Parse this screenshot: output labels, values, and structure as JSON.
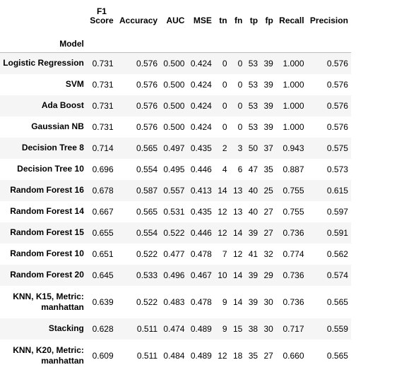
{
  "columns": {
    "index_name": "Model",
    "f1_line1": "F1",
    "f1_line2": "Score",
    "accuracy": "Accuracy",
    "auc": "AUC",
    "mse": "MSE",
    "tn": "tn",
    "fn": "fn",
    "tp": "tp",
    "fp": "fp",
    "recall": "Recall",
    "precision": "Precision"
  },
  "rows": [
    {
      "model": "Logistic Regression",
      "f1": "0.731",
      "accuracy": "0.576",
      "auc": "0.500",
      "mse": "0.424",
      "tn": "0",
      "fn": "0",
      "tp": "53",
      "fp": "39",
      "recall": "1.000",
      "precision": "0.576"
    },
    {
      "model": "SVM",
      "f1": "0.731",
      "accuracy": "0.576",
      "auc": "0.500",
      "mse": "0.424",
      "tn": "0",
      "fn": "0",
      "tp": "53",
      "fp": "39",
      "recall": "1.000",
      "precision": "0.576"
    },
    {
      "model": "Ada Boost",
      "f1": "0.731",
      "accuracy": "0.576",
      "auc": "0.500",
      "mse": "0.424",
      "tn": "0",
      "fn": "0",
      "tp": "53",
      "fp": "39",
      "recall": "1.000",
      "precision": "0.576"
    },
    {
      "model": "Gaussian NB",
      "f1": "0.731",
      "accuracy": "0.576",
      "auc": "0.500",
      "mse": "0.424",
      "tn": "0",
      "fn": "0",
      "tp": "53",
      "fp": "39",
      "recall": "1.000",
      "precision": "0.576"
    },
    {
      "model": "Decision Tree 8",
      "f1": "0.714",
      "accuracy": "0.565",
      "auc": "0.497",
      "mse": "0.435",
      "tn": "2",
      "fn": "3",
      "tp": "50",
      "fp": "37",
      "recall": "0.943",
      "precision": "0.575"
    },
    {
      "model": "Decision Tree 10",
      "f1": "0.696",
      "accuracy": "0.554",
      "auc": "0.495",
      "mse": "0.446",
      "tn": "4",
      "fn": "6",
      "tp": "47",
      "fp": "35",
      "recall": "0.887",
      "precision": "0.573"
    },
    {
      "model": "Random Forest 16",
      "f1": "0.678",
      "accuracy": "0.587",
      "auc": "0.557",
      "mse": "0.413",
      "tn": "14",
      "fn": "13",
      "tp": "40",
      "fp": "25",
      "recall": "0.755",
      "precision": "0.615"
    },
    {
      "model": "Random Forest 14",
      "f1": "0.667",
      "accuracy": "0.565",
      "auc": "0.531",
      "mse": "0.435",
      "tn": "12",
      "fn": "13",
      "tp": "40",
      "fp": "27",
      "recall": "0.755",
      "precision": "0.597"
    },
    {
      "model": "Random Forest 15",
      "f1": "0.655",
      "accuracy": "0.554",
      "auc": "0.522",
      "mse": "0.446",
      "tn": "12",
      "fn": "14",
      "tp": "39",
      "fp": "27",
      "recall": "0.736",
      "precision": "0.591"
    },
    {
      "model": "Random Forest 10",
      "f1": "0.651",
      "accuracy": "0.522",
      "auc": "0.477",
      "mse": "0.478",
      "tn": "7",
      "fn": "12",
      "tp": "41",
      "fp": "32",
      "recall": "0.774",
      "precision": "0.562"
    },
    {
      "model": "Random Forest 20",
      "f1": "0.645",
      "accuracy": "0.533",
      "auc": "0.496",
      "mse": "0.467",
      "tn": "10",
      "fn": "14",
      "tp": "39",
      "fp": "29",
      "recall": "0.736",
      "precision": "0.574"
    },
    {
      "model_line1": "KNN, K15, Metric:",
      "model_line2": "manhattan",
      "f1": "0.639",
      "accuracy": "0.522",
      "auc": "0.483",
      "mse": "0.478",
      "tn": "9",
      "fn": "14",
      "tp": "39",
      "fp": "30",
      "recall": "0.736",
      "precision": "0.565"
    },
    {
      "model": "Stacking",
      "f1": "0.628",
      "accuracy": "0.511",
      "auc": "0.474",
      "mse": "0.489",
      "tn": "9",
      "fn": "15",
      "tp": "38",
      "fp": "30",
      "recall": "0.717",
      "precision": "0.559"
    },
    {
      "model_line1": "KNN, K20, Metric:",
      "model_line2": "manhattan",
      "f1": "0.609",
      "accuracy": "0.511",
      "auc": "0.484",
      "mse": "0.489",
      "tn": "12",
      "fn": "18",
      "tp": "35",
      "fp": "27",
      "recall": "0.660",
      "precision": "0.565"
    }
  ]
}
